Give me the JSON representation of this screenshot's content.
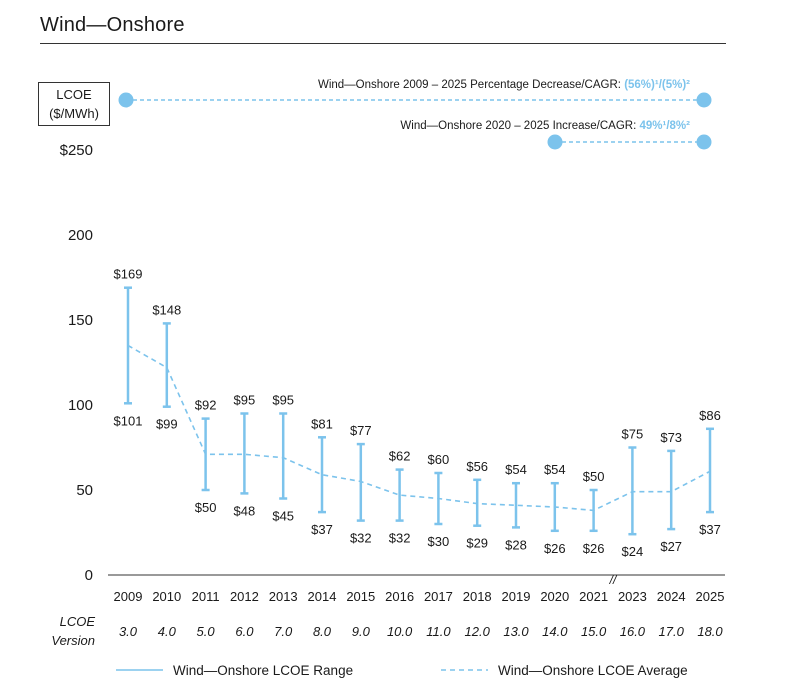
{
  "page": {
    "title": "Wind—Onshore"
  },
  "colors": {
    "accent": "#7cc3ec",
    "axis": "#333333",
    "text": "#1a1a1a"
  },
  "chart_data": {
    "type": "range-bar-with-line",
    "unit_label": {
      "line1": "LCOE",
      "line2": "($/MWh)"
    },
    "y_tick_labels": [
      "$250",
      "200",
      "150",
      "100",
      "50",
      "0"
    ],
    "y_ticks": [
      250,
      200,
      150,
      100,
      50,
      0
    ],
    "ylim": [
      0,
      250
    ],
    "categories": [
      "2009",
      "2010",
      "2011",
      "2012",
      "2013",
      "2014",
      "2015",
      "2016",
      "2017",
      "2018",
      "2019",
      "2020",
      "2021",
      "2023",
      "2024",
      "2025"
    ],
    "versions": [
      "3.0",
      "4.0",
      "5.0",
      "6.0",
      "7.0",
      "8.0",
      "9.0",
      "10.0",
      "11.0",
      "12.0",
      "13.0",
      "14.0",
      "15.0",
      "16.0",
      "17.0",
      "18.0"
    ],
    "version_label": {
      "line1": "LCOE",
      "line2": "Version"
    },
    "axis_break_after": "2021",
    "axis_break_symbol": "//",
    "series": [
      {
        "name": "Wind—Onshore LCOE Range",
        "high": [
          169,
          148,
          92,
          95,
          95,
          81,
          77,
          62,
          60,
          56,
          54,
          54,
          50,
          75,
          73,
          86
        ],
        "low": [
          101,
          99,
          50,
          48,
          45,
          37,
          32,
          32,
          30,
          29,
          28,
          26,
          26,
          24,
          27,
          37
        ]
      },
      {
        "name": "Wind—Onshore LCOE Average",
        "values": [
          135,
          122,
          71,
          71,
          69,
          59,
          55,
          47,
          45,
          42,
          41,
          40,
          38,
          49,
          49,
          61
        ]
      }
    ],
    "high_labels": [
      "$169",
      "$148",
      "$92",
      "$95",
      "$95",
      "$81",
      "$77",
      "$62",
      "$60",
      "$56",
      "$54",
      "$54",
      "$50",
      "$75",
      "$73",
      "$86"
    ],
    "low_labels": [
      "$101",
      "$99",
      "$50",
      "$48",
      "$45",
      "$37",
      "$32",
      "$32",
      "$30",
      "$29",
      "$28",
      "$26",
      "$26",
      "$24",
      "$27",
      "$37"
    ],
    "annotations": [
      {
        "text": "Wind—Onshore 2009 – 2025 Percentage Decrease/CAGR: ",
        "highlight": "(56%)¹/(5%)²",
        "from": "2009",
        "to": "2025"
      },
      {
        "text": "Wind—Onshore 2020 – 2025 Increase/CAGR: ",
        "highlight": "49%¹/8%²",
        "from": "2020",
        "to": "2025"
      }
    ],
    "legend": [
      "Wind—Onshore LCOE Range",
      "Wind—Onshore LCOE Average"
    ]
  }
}
